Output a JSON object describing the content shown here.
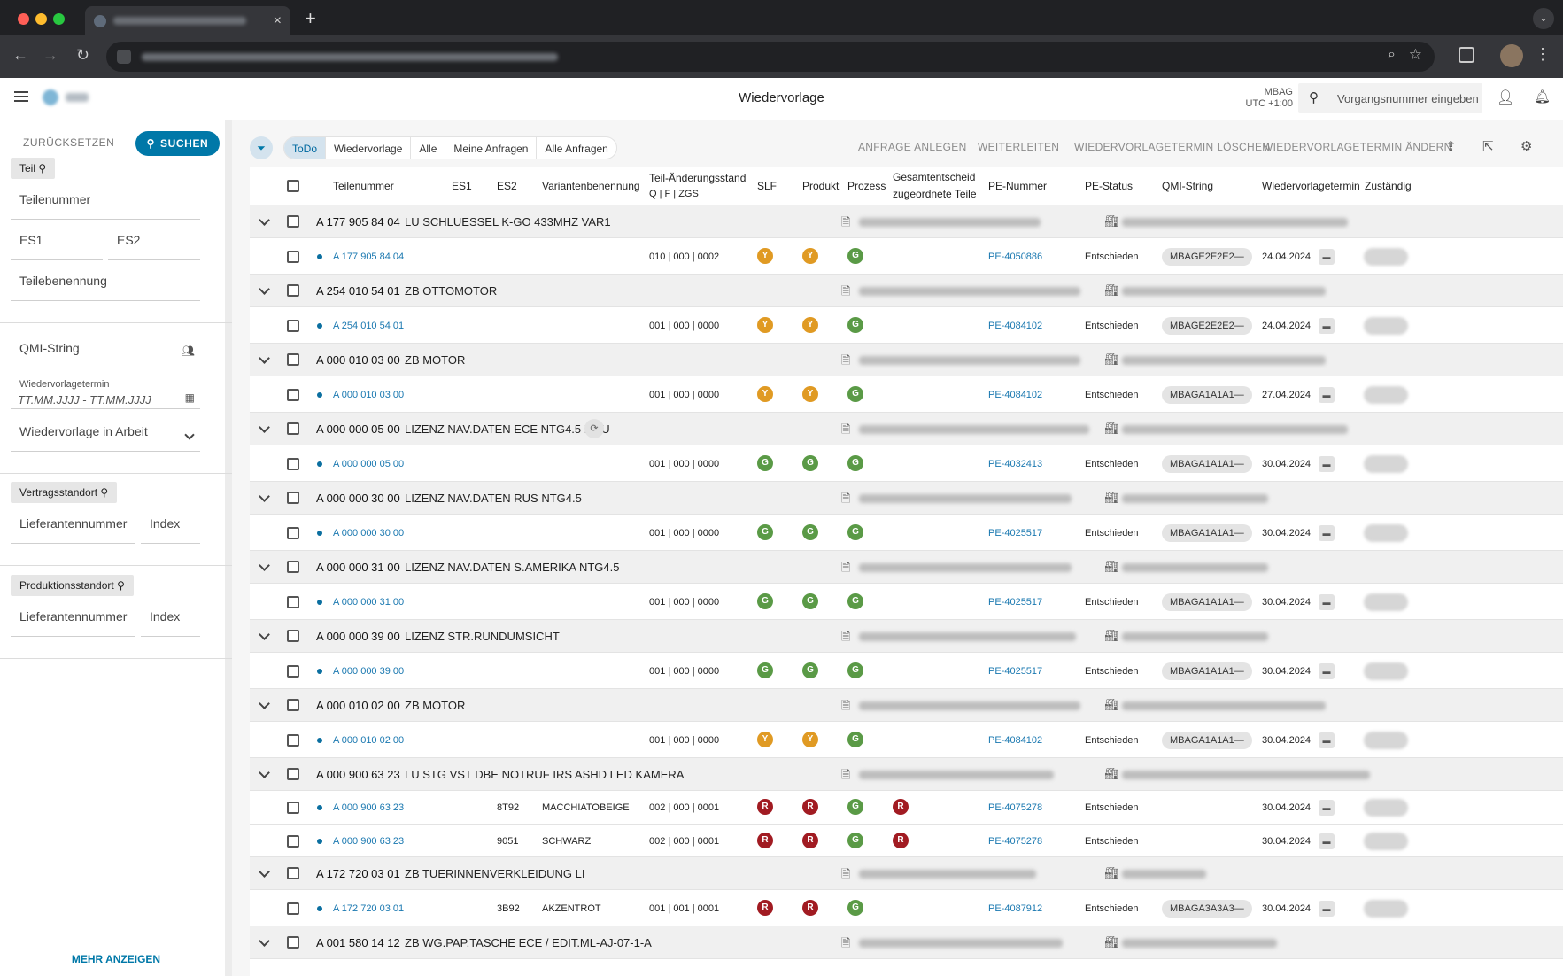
{
  "browser": {
    "tab_close": "×",
    "new_tab": "+",
    "tab_menu": "⌄"
  },
  "appbar": {
    "title": "Wiedervorlage",
    "org": "MBAG",
    "tz": "UTC +1:00",
    "search_placeholder": "Vorgangsnummer eingeben"
  },
  "sidebar": {
    "reset": "ZURÜCKSETZEN",
    "search": "SUCHEN",
    "chip_teil": "Teil",
    "teilenummer": "Teilenummer",
    "es1": "ES1",
    "es2": "ES2",
    "teilebenennung": "Teilebenennung",
    "qmi_string": "QMI-String",
    "wv_label": "Wiedervorlagetermin",
    "wv_date": "TT.MM.JJJJ - TT.MM.JJJJ",
    "wv_select": "Wiedervorlage in Arbeit",
    "chip_vertrag": "Vertragsstandort",
    "lief1": "Lieferantennummer",
    "index1": "Index",
    "chip_prod": "Produktionsstandort",
    "lief2": "Lieferantennummer",
    "index2": "Index",
    "more": "MEHR ANZEIGEN"
  },
  "toolbar": {
    "tabs": [
      "ToDo",
      "Wiedervorlage",
      "Alle",
      "Meine Anfragen",
      "Alle Anfragen"
    ],
    "active_tab": "ToDo",
    "actions": [
      "ANFRAGE ANLEGEN",
      "WEITERLEITEN",
      "WIEDERVORLAGETERMIN LÖSCHEN",
      "WIEDERVORLAGETERMIN ÄNDERN"
    ]
  },
  "columns": {
    "teilenummer": "Teilenummer",
    "es1": "ES1",
    "es2": "ES2",
    "varianten": "Variantenbenennung",
    "aenderung": "Teil-Änderungsstand",
    "aenderung_sub": "Q | F | ZGS",
    "slf": "SLF",
    "produkt": "Produkt",
    "prozess": "Prozess",
    "gesamt1": "Gesamtentscheid",
    "gesamt2": "zugeordnete Teile",
    "pe_nummer": "PE-Nummer",
    "pe_status": "PE-Status",
    "qmi": "QMI-String",
    "wv": "Wiedervorlagetermin",
    "zust": "Zuständig"
  },
  "badge_colors": {
    "G": "#5a9a46",
    "Y": "#e09a23",
    "R": "#a11b22"
  },
  "groups": [
    {
      "num": "A 177 905 84 04",
      "name": "LU SCHLUESSEL K-GO 433MHZ VAR1",
      "refresh": false,
      "children": [
        {
          "part": "A 177 905 84 04",
          "es2": "",
          "variant": "",
          "stand": "010 | 000 | 0002",
          "slf": "Y",
          "produkt": "Y",
          "prozess": "G",
          "gesamt": "",
          "pe": "PE-4050886",
          "status": "Entschieden",
          "qmi": "MBAGE2E2E2—",
          "date": "24.04.2024"
        }
      ]
    },
    {
      "num": "A 254 010 54 01",
      "name": "ZB OTTOMOTOR",
      "refresh": false,
      "children": [
        {
          "part": "A 254 010 54 01",
          "es2": "",
          "variant": "",
          "stand": "001 | 000 | 0000",
          "slf": "Y",
          "produkt": "Y",
          "prozess": "G",
          "gesamt": "",
          "pe": "PE-4084102",
          "status": "Entschieden",
          "qmi": "MBAGE2E2E2—",
          "date": "24.04.2024"
        }
      ]
    },
    {
      "num": "A 000 010 03 00",
      "name": "ZB MOTOR",
      "refresh": false,
      "children": [
        {
          "part": "A 000 010 03 00",
          "es2": "",
          "variant": "",
          "stand": "001 | 000 | 0000",
          "slf": "Y",
          "produkt": "Y",
          "prozess": "G",
          "gesamt": "",
          "pe": "PE-4084102",
          "status": "Entschieden",
          "qmi": "MBAGA1A1A1—",
          "date": "27.04.2024"
        }
      ]
    },
    {
      "num": "A 000 000 05 00",
      "name": "LIZENZ NAV.DATEN ECE NTG4.5 MYU",
      "refresh": true,
      "children": [
        {
          "part": "A 000 000 05 00",
          "es2": "",
          "variant": "",
          "stand": "001 | 000 | 0000",
          "slf": "G",
          "produkt": "G",
          "prozess": "G",
          "gesamt": "",
          "pe": "PE-4032413",
          "status": "Entschieden",
          "qmi": "MBAGA1A1A1—",
          "date": "30.04.2024"
        }
      ]
    },
    {
      "num": "A 000 000 30 00",
      "name": "LIZENZ NAV.DATEN RUS NTG4.5",
      "refresh": false,
      "children": [
        {
          "part": "A 000 000 30 00",
          "es2": "",
          "variant": "",
          "stand": "001 | 000 | 0000",
          "slf": "G",
          "produkt": "G",
          "prozess": "G",
          "gesamt": "",
          "pe": "PE-4025517",
          "status": "Entschieden",
          "qmi": "MBAGA1A1A1—",
          "date": "30.04.2024"
        }
      ]
    },
    {
      "num": "A 000 000 31 00",
      "name": "LIZENZ NAV.DATEN S.AMERIKA NTG4.5",
      "refresh": false,
      "children": [
        {
          "part": "A 000 000 31 00",
          "es2": "",
          "variant": "",
          "stand": "001 | 000 | 0000",
          "slf": "G",
          "produkt": "G",
          "prozess": "G",
          "gesamt": "",
          "pe": "PE-4025517",
          "status": "Entschieden",
          "qmi": "MBAGA1A1A1—",
          "date": "30.04.2024"
        }
      ]
    },
    {
      "num": "A 000 000 39 00",
      "name": "LIZENZ STR.RUNDUMSICHT",
      "refresh": false,
      "children": [
        {
          "part": "A 000 000 39 00",
          "es2": "",
          "variant": "",
          "stand": "001 | 000 | 0000",
          "slf": "G",
          "produkt": "G",
          "prozess": "G",
          "gesamt": "",
          "pe": "PE-4025517",
          "status": "Entschieden",
          "qmi": "MBAGA1A1A1—",
          "date": "30.04.2024"
        }
      ]
    },
    {
      "num": "A 000 010 02 00",
      "name": "ZB MOTOR",
      "refresh": false,
      "children": [
        {
          "part": "A 000 010 02 00",
          "es2": "",
          "variant": "",
          "stand": "001 | 000 | 0000",
          "slf": "Y",
          "produkt": "Y",
          "prozess": "G",
          "gesamt": "",
          "pe": "PE-4084102",
          "status": "Entschieden",
          "qmi": "MBAGA1A1A1—",
          "date": "30.04.2024"
        }
      ]
    },
    {
      "num": "A 000 900 63 23",
      "name": "LU STG VST DBE NOTRUF IRS ASHD LED KAMERA",
      "refresh": false,
      "children": [
        {
          "part": "A 000 900 63 23",
          "es2": "8T92",
          "variant": "MACCHIATOBEIGE",
          "stand": "002 | 000 | 0001",
          "slf": "R",
          "produkt": "R",
          "prozess": "G",
          "gesamt": "R",
          "pe": "PE-4075278",
          "status": "Entschieden",
          "qmi": "",
          "date": "30.04.2024"
        },
        {
          "part": "A 000 900 63 23",
          "es2": "9051",
          "variant": "SCHWARZ",
          "stand": "002 | 000 | 0001",
          "slf": "R",
          "produkt": "R",
          "prozess": "G",
          "gesamt": "R",
          "pe": "PE-4075278",
          "status": "Entschieden",
          "qmi": "",
          "date": "30.04.2024"
        }
      ]
    },
    {
      "num": "A 172 720 03 01",
      "name": "ZB TUERINNENVERKLEIDUNG LI",
      "refresh": false,
      "children": [
        {
          "part": "A 172 720 03 01",
          "es2": "3B92",
          "variant": "AKZENTROT",
          "stand": "001 | 001 | 0001",
          "slf": "R",
          "produkt": "R",
          "prozess": "G",
          "gesamt": "",
          "pe": "PE-4087912",
          "status": "Entschieden",
          "qmi": "MBAGA3A3A3—",
          "date": "30.04.2024"
        }
      ]
    },
    {
      "num": "A 001 580 14 12",
      "name": "ZB WG.PAP.TASCHE ECE / EDIT.ML-AJ-07-1-A",
      "refresh": false,
      "children": []
    }
  ]
}
